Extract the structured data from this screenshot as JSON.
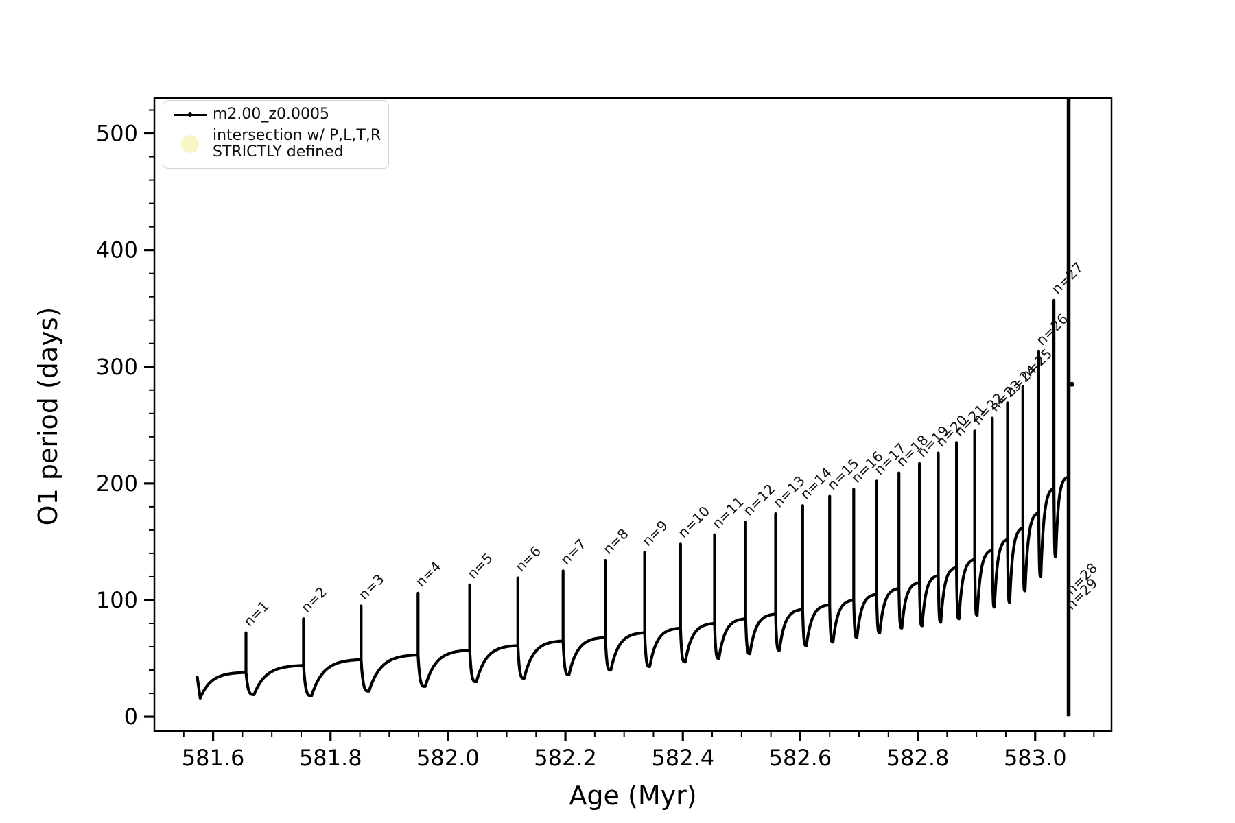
{
  "figure": {
    "background": "#ffffff",
    "axes_color": "#000000"
  },
  "chart_data": {
    "type": "line",
    "title": "",
    "xlabel": "Age (Myr)",
    "ylabel": "O1 period (days)",
    "xlim": [
      581.5,
      583.13
    ],
    "ylim": [
      -12.3,
      530.3
    ],
    "grid": false,
    "x_ticks": [
      581.6,
      581.8,
      582.0,
      582.2,
      582.4,
      582.6,
      582.8,
      583.0
    ],
    "x_tick_labels": [
      "581.6",
      "581.8",
      "582.0",
      "582.2",
      "582.4",
      "582.6",
      "582.8",
      "583.0"
    ],
    "x_minor_tick_step": 0.05,
    "y_ticks": [
      0,
      100,
      200,
      300,
      400,
      500
    ],
    "y_tick_labels": [
      "0",
      "100",
      "200",
      "300",
      "400",
      "500"
    ],
    "y_minor_tick_step": 20,
    "series_color": "#000000",
    "legend": {
      "position": "upper left",
      "entries": [
        {
          "label": "m2.00_z0.0005",
          "marker": "line-with-dot",
          "color": "#000000"
        },
        {
          "label_line1": "intersection w/ P,L,T,R",
          "label_line2": "STRICTLY defined",
          "marker": "filled-circle",
          "color": "#faf6c3"
        }
      ]
    },
    "cycles": [
      {
        "n": 1,
        "label": "n=1",
        "age": 581.656,
        "peak": 72,
        "shoulder": 38,
        "min_start": 16
      },
      {
        "n": 2,
        "label": "n=2",
        "age": 581.754,
        "peak": 84,
        "shoulder": 44,
        "min_start": 19
      },
      {
        "n": 3,
        "label": "n=3",
        "age": 581.852,
        "peak": 95,
        "shoulder": 49,
        "min_start": 18
      },
      {
        "n": 4,
        "label": "n=4",
        "age": 581.949,
        "peak": 106,
        "shoulder": 53,
        "min_start": 22
      },
      {
        "n": 5,
        "label": "n=5",
        "age": 582.037,
        "peak": 113,
        "shoulder": 57,
        "min_start": 26
      },
      {
        "n": 6,
        "label": "n=6",
        "age": 582.119,
        "peak": 119,
        "shoulder": 61,
        "min_start": 30
      },
      {
        "n": 7,
        "label": "n=7",
        "age": 582.196,
        "peak": 125,
        "shoulder": 65,
        "min_start": 33
      },
      {
        "n": 8,
        "label": "n=8",
        "age": 582.268,
        "peak": 134,
        "shoulder": 68,
        "min_start": 36
      },
      {
        "n": 9,
        "label": "n=9",
        "age": 582.335,
        "peak": 141,
        "shoulder": 72,
        "min_start": 40
      },
      {
        "n": 10,
        "label": "n=10",
        "age": 582.396,
        "peak": 148,
        "shoulder": 76,
        "min_start": 43
      },
      {
        "n": 11,
        "label": "n=11",
        "age": 582.454,
        "peak": 156,
        "shoulder": 80,
        "min_start": 47
      },
      {
        "n": 12,
        "label": "n=12",
        "age": 582.507,
        "peak": 167,
        "shoulder": 84,
        "min_start": 50
      },
      {
        "n": 13,
        "label": "n=13",
        "age": 582.558,
        "peak": 174,
        "shoulder": 88,
        "min_start": 54
      },
      {
        "n": 14,
        "label": "n=14",
        "age": 582.604,
        "peak": 181,
        "shoulder": 92,
        "min_start": 57
      },
      {
        "n": 15,
        "label": "n=15",
        "age": 582.65,
        "peak": 189,
        "shoulder": 96,
        "min_start": 61
      },
      {
        "n": 16,
        "label": "n=16",
        "age": 582.691,
        "peak": 195,
        "shoulder": 100,
        "min_start": 64
      },
      {
        "n": 17,
        "label": "n=17",
        "age": 582.73,
        "peak": 202,
        "shoulder": 105,
        "min_start": 68
      },
      {
        "n": 18,
        "label": "n=18",
        "age": 582.768,
        "peak": 209,
        "shoulder": 110,
        "min_start": 72
      },
      {
        "n": 19,
        "label": "n=19",
        "age": 582.803,
        "peak": 217,
        "shoulder": 115,
        "min_start": 76
      },
      {
        "n": 20,
        "label": "n=20",
        "age": 582.835,
        "peak": 226,
        "shoulder": 121,
        "min_start": 78
      },
      {
        "n": 21,
        "label": "n=21",
        "age": 582.866,
        "peak": 235,
        "shoulder": 128,
        "min_start": 81
      },
      {
        "n": 22,
        "label": "n=22",
        "age": 582.897,
        "peak": 245,
        "shoulder": 135,
        "min_start": 84
      },
      {
        "n": 23,
        "label": "n=23",
        "age": 582.927,
        "peak": 256,
        "shoulder": 143,
        "min_start": 87
      },
      {
        "n": 24,
        "label": "n=24",
        "age": 582.953,
        "peak": 269,
        "shoulder": 152,
        "min_start": 94
      },
      {
        "n": 25,
        "label": "n=25",
        "age": 582.979,
        "peak": 283,
        "shoulder": 162,
        "min_start": 98
      },
      {
        "n": 26,
        "label": "n=26",
        "age": 583.006,
        "peak": 313,
        "shoulder": 175,
        "min_start": 108
      },
      {
        "n": 27,
        "label": "n=27",
        "age": 583.032,
        "peak": 357,
        "shoulder": 196,
        "min_start": 120
      }
    ],
    "start_hook": {
      "x": 581.573,
      "y_top": 34,
      "x2": 581.578,
      "y_bottom": 16
    },
    "tail_segment": {
      "min_start": 137,
      "shoulder": 205,
      "end_age": 583.054
    },
    "final_collapse": {
      "age": 583.057,
      "top": 530,
      "bottom": 0.5,
      "labels": [
        {
          "text": "n=28",
          "x": 583.062,
          "y": 104
        },
        {
          "text": "n=29",
          "x": 583.062,
          "y": 91
        }
      ]
    },
    "stray_point": {
      "x": 583.058,
      "y": 285
    }
  }
}
